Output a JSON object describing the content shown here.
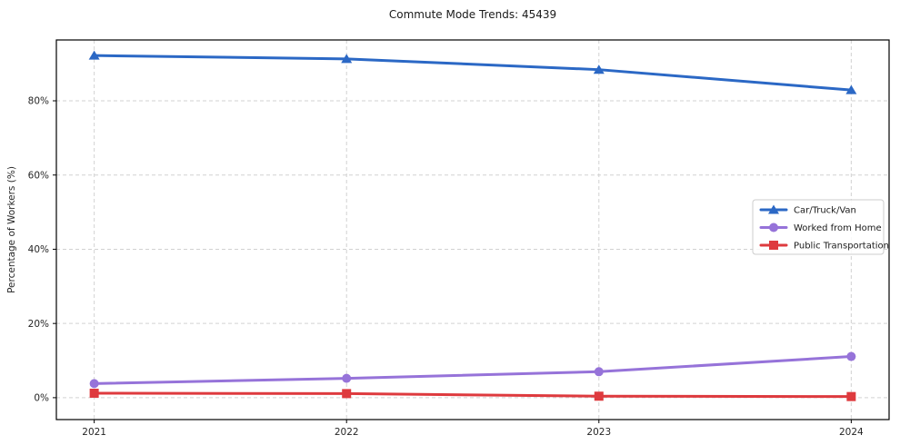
{
  "figure": {
    "background": "#ffffff"
  },
  "chart_data": {
    "type": "line",
    "title": "Commute Mode Trends: 45439",
    "xlabel": "",
    "ylabel": "Percentage of Workers (%)",
    "x": [
      2021,
      2022,
      2023,
      2024
    ],
    "x_tick_labels": [
      "2021",
      "2022",
      "2023",
      "2024"
    ],
    "y_ticks": [
      0,
      20,
      40,
      60,
      80
    ],
    "y_tick_labels": [
      "0%",
      "20%",
      "40%",
      "60%",
      "80%"
    ],
    "xlim": [
      2020.85,
      2024.15
    ],
    "ylim": [
      -5.9,
      96.4
    ],
    "grid": true,
    "grid_color": "#cdcdcd",
    "spine_color": "#000000",
    "tick_label_color": "#262626",
    "legend_position": "center-right",
    "series": [
      {
        "name": "Car/Truck/Van",
        "color": "#2b68c5",
        "marker": "triangle-up",
        "values": [
          92.2,
          91.3,
          88.4,
          82.9
        ]
      },
      {
        "name": "Worked from Home",
        "color": "#9673d9",
        "marker": "circle",
        "values": [
          3.8,
          5.2,
          7.0,
          11.1
        ]
      },
      {
        "name": "Public Transportation",
        "color": "#de3a3e",
        "marker": "square",
        "values": [
          1.2,
          1.1,
          0.4,
          0.3
        ]
      }
    ]
  }
}
